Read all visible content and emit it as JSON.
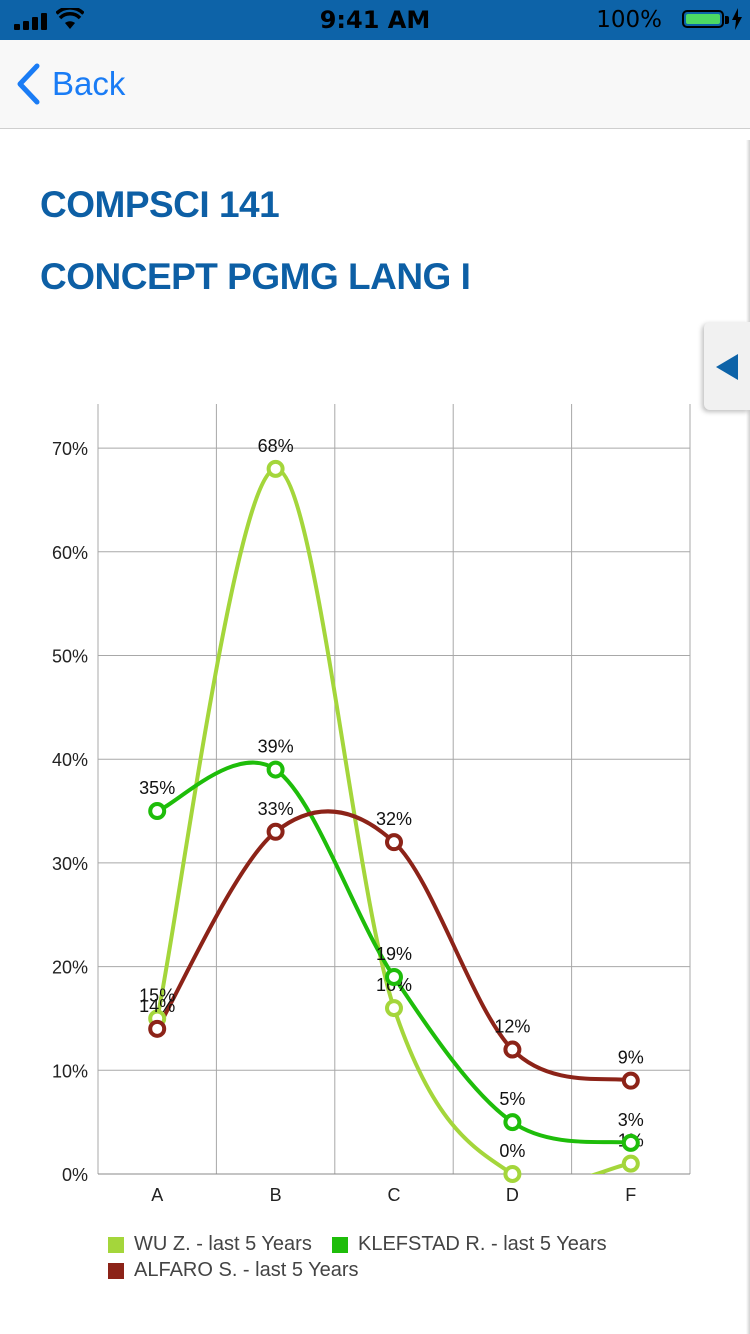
{
  "status": {
    "time": "9:41 AM",
    "battery": "100%"
  },
  "nav": {
    "back_label": "Back"
  },
  "course": {
    "code": "COMPSCI 141",
    "name": "CONCEPT PGMG LANG I"
  },
  "chart_data": {
    "type": "line",
    "categories": [
      "A",
      "B",
      "C",
      "D",
      "F"
    ],
    "ylim": [
      0,
      70
    ],
    "yticks": [
      "0%",
      "10%",
      "20%",
      "30%",
      "40%",
      "50%",
      "60%",
      "70%"
    ],
    "grid": true,
    "legend_position": "bottom",
    "series": [
      {
        "name": "WU Z. - last 5 Years",
        "color": "#a4d63b",
        "values": [
          15,
          68,
          16,
          0,
          1
        ],
        "labels": [
          "15%",
          "68%",
          "16%",
          "0%",
          "1%"
        ]
      },
      {
        "name": "KLEFSTAD R. - last 5 Years",
        "color": "#1ebd0a",
        "values": [
          35,
          39,
          19,
          5,
          3
        ],
        "labels": [
          "35%",
          "39%",
          "19%",
          "5%",
          "3%"
        ]
      },
      {
        "name": "ALFARO S. - last 5 Years",
        "color": "#8c2318",
        "values": [
          14,
          33,
          32,
          12,
          9
        ],
        "labels": [
          "14%",
          "33%",
          "32%",
          "12%",
          "9%"
        ]
      }
    ]
  }
}
